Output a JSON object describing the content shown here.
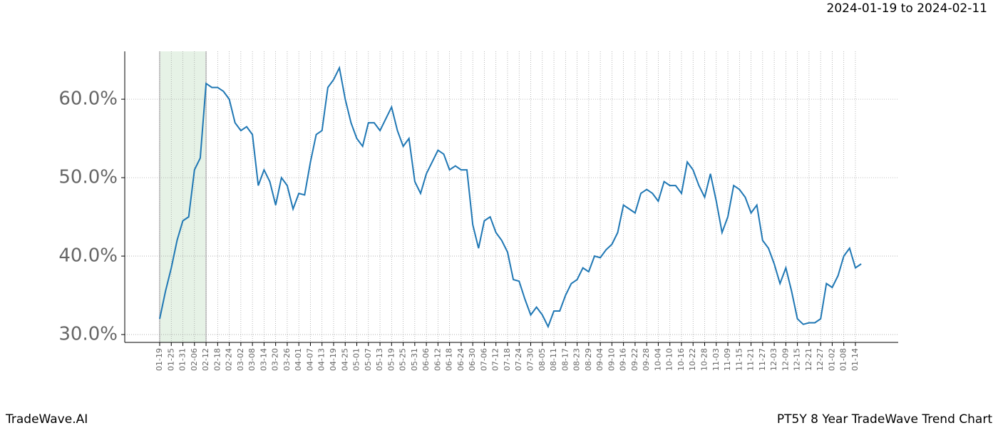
{
  "chart_data": {
    "type": "line",
    "subtitle": "2024-01-19 to 2024-02-11",
    "footer_left": "TradeWave.AI",
    "footer_right": "PT5Y 8 Year TradeWave Trend Chart",
    "categories": [
      "01-19",
      null,
      "01-25",
      null,
      "01-31",
      null,
      "02-06",
      null,
      "02-12",
      null,
      "02-18",
      null,
      "02-24",
      null,
      "03-02",
      null,
      "03-08",
      null,
      "03-14",
      null,
      "03-20",
      null,
      "03-26",
      null,
      "04-01",
      null,
      "04-07",
      null,
      "04-13",
      null,
      "04-19",
      null,
      "04-25",
      null,
      "05-01",
      null,
      "05-07",
      null,
      "05-13",
      null,
      "05-19",
      null,
      "05-25",
      null,
      "05-31",
      null,
      "06-06",
      null,
      "06-12",
      null,
      "06-18",
      null,
      "06-24",
      null,
      "06-30",
      null,
      "07-06",
      null,
      "07-12",
      null,
      "07-18",
      null,
      "07-24",
      null,
      "07-30",
      null,
      "08-05",
      null,
      "08-11",
      null,
      "08-17",
      null,
      "08-23",
      null,
      "08-29",
      null,
      "09-04",
      null,
      "09-10",
      null,
      "09-16",
      null,
      "09-22",
      null,
      "09-28",
      null,
      "10-04",
      null,
      "10-10",
      null,
      "10-16",
      null,
      "10-22",
      null,
      "10-28",
      null,
      "11-03",
      null,
      "11-09",
      null,
      "11-15",
      null,
      "11-21",
      null,
      "11-27",
      null,
      "12-03",
      null,
      "12-09",
      null,
      "12-15",
      null,
      "12-21",
      null,
      "12-27",
      null,
      "01-02",
      null,
      "01-08",
      null,
      "01-14",
      null
    ],
    "values": [
      32,
      35.5,
      38.5,
      42,
      44.5,
      45,
      51,
      52.5,
      62,
      61.5,
      61.5,
      61,
      60,
      57,
      56,
      56.5,
      55.5,
      49,
      51,
      49.5,
      46.5,
      50,
      49,
      46,
      48,
      47.8,
      52,
      55.5,
      56,
      61.5,
      62.5,
      64,
      60,
      57,
      55,
      54,
      57,
      57,
      56,
      57.5,
      59,
      56,
      54,
      55,
      49.5,
      48,
      50.5,
      52,
      53.5,
      53,
      51,
      51.5,
      51,
      51,
      44,
      41,
      44.5,
      45,
      43,
      42,
      40.5,
      37,
      36.8,
      34.5,
      32.5,
      33.5,
      32.5,
      31,
      33,
      33,
      35,
      36.5,
      37,
      38.5,
      38,
      40,
      39.8,
      40.8,
      41.5,
      43,
      46.5,
      46,
      45.5,
      48,
      48.5,
      48,
      47,
      49.5,
      49,
      49,
      48,
      52,
      51,
      49,
      47.5,
      50.5,
      47,
      43,
      45,
      49,
      48.5,
      47.5,
      45.5,
      46.5,
      42,
      41,
      39,
      36.5,
      38.5,
      35.5,
      32,
      31.3,
      31.5,
      31.5,
      32,
      36.5,
      36,
      37.5,
      40,
      41,
      38.5,
      39
    ],
    "color": "#1f77b4",
    "highlight": [
      "01-19",
      "02-12"
    ],
    "highlight_color": "#e6f2e6",
    "ylim": [
      29,
      66.1
    ],
    "yticks": [
      {
        "value": 30,
        "label": "30.0%"
      },
      {
        "value": 40,
        "label": "40.0%"
      },
      {
        "value": 50,
        "label": "50.0%"
      },
      {
        "value": 60,
        "label": "60.0%"
      }
    ],
    "grid": true
  }
}
